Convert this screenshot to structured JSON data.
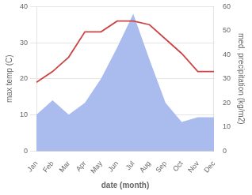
{
  "chart_data": {
    "type": "line",
    "categories": [
      "Jan",
      "Feb",
      "Mar",
      "Apr",
      "May",
      "Jun",
      "Jul",
      "Aug",
      "Sep",
      "Oct",
      "Nov",
      "Dec"
    ],
    "series": [
      {
        "type": "area",
        "axis": "y2",
        "color": "#aabbee",
        "values": [
          15,
          21,
          15,
          20,
          30,
          43,
          57,
          38,
          20,
          12,
          14,
          14
        ]
      },
      {
        "type": "line",
        "axis": "y",
        "color": "#cc4444",
        "values": [
          19,
          22,
          26,
          33,
          33,
          36,
          36,
          35,
          31,
          27,
          22,
          22
        ]
      }
    ],
    "xlabel": "date (month)",
    "ylabel": "max temp (C)",
    "y2label": "med. precipitation (kg/m2)",
    "ylim": [
      0,
      40
    ],
    "yticks": [
      0,
      10,
      20,
      30,
      40
    ],
    "y2lim": [
      0,
      60
    ],
    "y2ticks": [
      0,
      10,
      20,
      30,
      40,
      50,
      60
    ],
    "grid": "y"
  }
}
